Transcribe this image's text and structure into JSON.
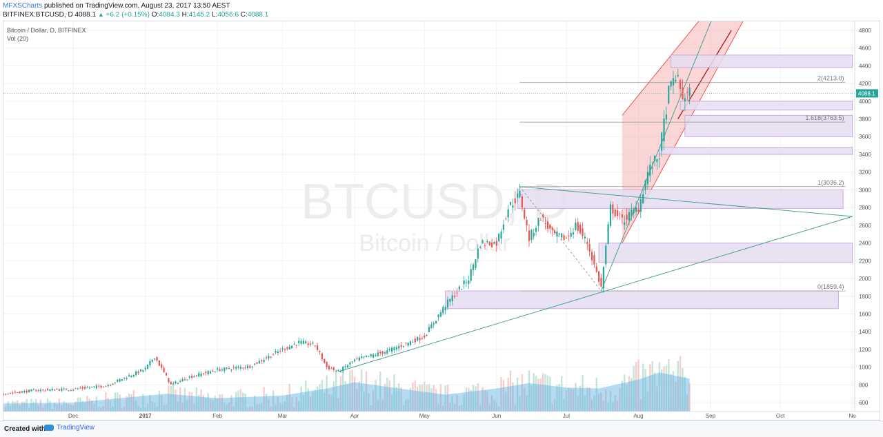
{
  "header": {
    "author": "MFXSCharts",
    "published_text": "published on TradingView.com, August 23, 2017 13:50 AEST",
    "symbol_line": "BITFINEX:BTCUSD, D",
    "last_price": "4088.1",
    "change": "+6.2 (+0.15%)",
    "open_label": "O:",
    "open": "4084.3",
    "high_label": "H:",
    "high": "4145.2",
    "low_label": "L:",
    "low": "4056.6",
    "close_label": "C:",
    "close": "4088.1"
  },
  "legend": {
    "series_title": "Bitcoin / Dollar, D, BITFINEX",
    "volume_title": "Vol (20)"
  },
  "watermark": {
    "symbol": "BTCUSD, D",
    "name": "Bitcoin / Dollar"
  },
  "footer": {
    "created_with": "Created with",
    "brand": "TradingView"
  },
  "colors": {
    "up": "#26a69a",
    "down": "#ef5350",
    "volume": "#5ab0e5",
    "channel_fill": "#f4a3a3",
    "zone_fill": "#e6def2",
    "zone_border": "#c19de0",
    "trendline": "#4a9e94",
    "price_line": "#7ec8c0"
  },
  "chart_data": {
    "type": "candlestick",
    "ylim": [
      500,
      4900
    ],
    "y_ticks": [
      600,
      800,
      1000,
      1200,
      1400,
      1600,
      1800,
      2000,
      2200,
      2400,
      2600,
      2800,
      3000,
      3200,
      3400,
      3600,
      3800,
      4000,
      4200,
      4400,
      4600,
      4800
    ],
    "x_ticks": [
      "Dec",
      "2017",
      "Feb",
      "Mar",
      "Apr",
      "May",
      "Jun",
      "Jul",
      "Aug",
      "Sep",
      "Oct",
      "No"
    ],
    "last_price_label": "4088.1",
    "fib_levels": [
      {
        "label": "2(4213.0)",
        "value": 4213.0
      },
      {
        "label": "1.618(3763.5)",
        "value": 3763.5
      },
      {
        "label": "1(3036.2)",
        "value": 3036.2
      },
      {
        "label": "0(1859.4)",
        "value": 1859.4
      }
    ],
    "close_path": [
      [
        "2016-11-01",
        700
      ],
      [
        "2016-11-15",
        740
      ],
      [
        "2016-12-01",
        752
      ],
      [
        "2016-12-15",
        790
      ],
      [
        "2017-01-01",
        980
      ],
      [
        "2017-01-05",
        1120
      ],
      [
        "2017-01-12",
        800
      ],
      [
        "2017-01-20",
        890
      ],
      [
        "2017-02-01",
        970
      ],
      [
        "2017-02-15",
        1010
      ],
      [
        "2017-03-01",
        1200
      ],
      [
        "2017-03-08",
        1280
      ],
      [
        "2017-03-15",
        1250
      ],
      [
        "2017-03-20",
        1000
      ],
      [
        "2017-03-25",
        950
      ],
      [
        "2017-04-01",
        1080
      ],
      [
        "2017-04-15",
        1180
      ],
      [
        "2017-05-01",
        1350
      ],
      [
        "2017-05-10",
        1700
      ],
      [
        "2017-05-20",
        2000
      ],
      [
        "2017-05-25",
        2400
      ],
      [
        "2017-06-01",
        2400
      ],
      [
        "2017-06-06",
        2800
      ],
      [
        "2017-06-11",
        2950
      ],
      [
        "2017-06-15",
        2450
      ],
      [
        "2017-06-20",
        2700
      ],
      [
        "2017-06-25",
        2500
      ],
      [
        "2017-07-01",
        2450
      ],
      [
        "2017-07-05",
        2600
      ],
      [
        "2017-07-10",
        2400
      ],
      [
        "2017-07-16",
        1900
      ],
      [
        "2017-07-20",
        2800
      ],
      [
        "2017-07-25",
        2650
      ],
      [
        "2017-08-01",
        2800
      ],
      [
        "2017-08-05",
        3200
      ],
      [
        "2017-08-10",
        3400
      ],
      [
        "2017-08-14",
        4100
      ],
      [
        "2017-08-17",
        4300
      ],
      [
        "2017-08-20",
        4050
      ],
      [
        "2017-08-23",
        4088
      ]
    ],
    "volume_ma_path": [
      [
        "2016-11-01",
        590
      ],
      [
        "2016-12-01",
        600
      ],
      [
        "2017-01-10",
        700
      ],
      [
        "2017-02-01",
        650
      ],
      [
        "2017-03-01",
        680
      ],
      [
        "2017-03-20",
        760
      ],
      [
        "2017-04-01",
        830
      ],
      [
        "2017-04-20",
        760
      ],
      [
        "2017-05-10",
        690
      ],
      [
        "2017-06-01",
        760
      ],
      [
        "2017-06-15",
        820
      ],
      [
        "2017-07-01",
        770
      ],
      [
        "2017-07-15",
        760
      ],
      [
        "2017-08-01",
        860
      ],
      [
        "2017-08-10",
        940
      ],
      [
        "2017-08-23",
        870
      ]
    ],
    "zones": [
      {
        "from": "2017-08-15",
        "to": "2017-11-01",
        "low": 4380,
        "high": 4520
      },
      {
        "from": "2017-08-19",
        "to": "2017-11-01",
        "low": 3900,
        "high": 4000
      },
      {
        "from": "2017-08-21",
        "to": "2017-11-01",
        "low": 3600,
        "high": 3840
      },
      {
        "from": "2017-08-10",
        "to": "2017-11-01",
        "low": 3400,
        "high": 3480
      },
      {
        "from": "2017-06-10",
        "to": "2017-10-28",
        "low": 2790,
        "high": 3000
      },
      {
        "from": "2017-07-15",
        "to": "2017-11-01",
        "low": 2180,
        "high": 2400
      },
      {
        "from": "2017-05-10",
        "to": "2017-10-26",
        "low": 1660,
        "high": 1860
      }
    ]
  }
}
